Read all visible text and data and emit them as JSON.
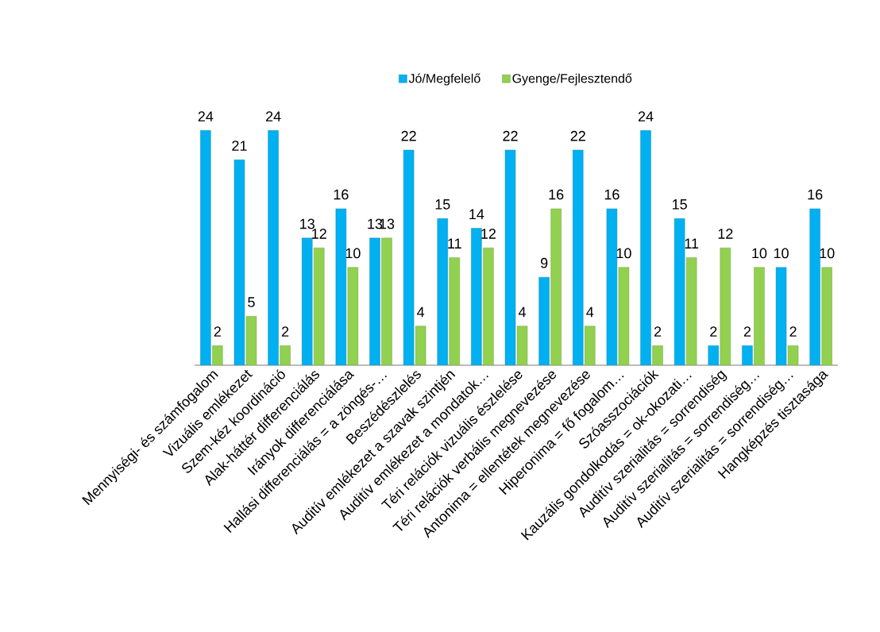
{
  "chart_data": {
    "type": "bar",
    "categories": [
      "Mennyiségi- és számfogalom",
      "Vizuális emlékezet",
      "Szem-kéz koordináció",
      "Alak-háttér differenciálás",
      "Irányok differenciálása",
      "Hallási differenciálás = a zöngés-…",
      "Beszédészlelés",
      "Auditív emlékezet a szavak szintjén",
      "Auditív emlékezet a mondatok…",
      "Téri relációk vizuális észlelése",
      "Téri relációk verbális megnevezése",
      "Antonima = ellentétek megnevezése",
      "Hiperonima = fő fogalom…",
      "Szóasszociációk",
      "Kauzális gondolkodás = ok-okozati…",
      "Auditív szerialitás = sorrendiség",
      "Auditív szerialitás = sorrendiség…",
      "Auditív szerialitás = sorrendiség…",
      "Hangképzés tisztasága"
    ],
    "series": [
      {
        "name": "Jó/Megfelelő",
        "color": "#00b0f0",
        "values": [
          24,
          21,
          24,
          13,
          16,
          13,
          22,
          15,
          14,
          22,
          9,
          22,
          16,
          24,
          15,
          2,
          2,
          10,
          16
        ]
      },
      {
        "name": "Gyenge/Fejlesztendő",
        "color": "#92d050",
        "values": [
          2,
          5,
          2,
          12,
          10,
          13,
          4,
          11,
          12,
          4,
          16,
          4,
          10,
          2,
          11,
          12,
          10,
          2,
          10
        ]
      }
    ],
    "tick_labels": "x",
    "data_labels": true,
    "legend": "top"
  }
}
